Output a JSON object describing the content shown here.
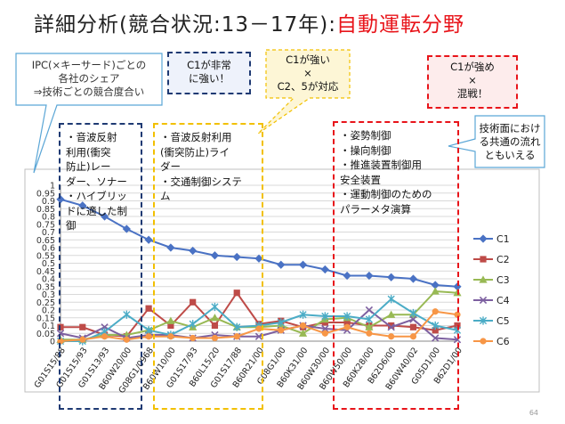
{
  "title": {
    "main": "詳細分析(競合状況:13－17年):",
    "highlight": "自動運転分野"
  },
  "callouts": {
    "ipc_note": [
      "IPC(×キーサード)ごとの",
      "各社のシェア",
      "⇒技術ごとの競合度合い"
    ],
    "c1_strong_very": [
      "C1が非常",
      "に強い！"
    ],
    "c1_strong_c25": [
      "C1が強い",
      "×",
      "C2、5が対応"
    ],
    "c1_strong_mixed": [
      "C1が強め",
      "×",
      "混戦！"
    ],
    "common_flow": [
      "技術面におけ",
      "る共通の流れ",
      "ともいえる"
    ]
  },
  "notes": {
    "box1": [
      "・音波反射",
      "利用(衝突",
      "防止)レー",
      "ダー、ソナー",
      "・ハイブリッ",
      "ドに適した制",
      "御"
    ],
    "box2": [
      "・音波反射利用",
      "(衝突防止)ライ",
      "ダー",
      "・交通制御システ",
      "ム"
    ],
    "box3": [
      "・姿勢制御",
      "・操向制御",
      "・推進装置制御用",
      "安全装置",
      "・運動制御のための",
      "パラーメタ演算"
    ]
  },
  "colors": {
    "title_highlight": "#e8141a",
    "box1": "#1f3a73",
    "box2": "#f2c000",
    "box3": "#e8141a"
  },
  "page_number": "64",
  "chart_data": {
    "type": "line",
    "ylim": [
      0,
      1
    ],
    "yticks": [
      "0",
      "0.05",
      "0.1",
      "0.15",
      "0.2",
      "0.25",
      "0.3",
      "0.35",
      "0.4",
      "0.45",
      "0.5",
      "0.55",
      "0.6",
      "0.65",
      "0.7",
      "0.75",
      "0.8",
      "0.85",
      "0.9",
      "0.95",
      "1"
    ],
    "categories": [
      "G01S15/88",
      "G01S15/93",
      "G01S13/93",
      "B60W20/00",
      "G08G1/0968",
      "B60W10/00",
      "G01S17/93",
      "B60L15/20",
      "G01S17/88",
      "B60R21/00",
      "G08G1/00",
      "B60K31/00",
      "B60W30/00",
      "B60W50/00",
      "B60K28/00",
      "B62D6/00",
      "B60W40/02",
      "G05D1/00",
      "B62D1/00"
    ],
    "legend": [
      "C1",
      "C2",
      "C3",
      "C4",
      "C5",
      "C6"
    ],
    "series": [
      {
        "name": "C1",
        "color": "#4a72c4",
        "marker": "diamond",
        "values": [
          0.91,
          0.87,
          0.8,
          0.72,
          0.65,
          0.6,
          0.58,
          0.55,
          0.54,
          0.53,
          0.49,
          0.49,
          0.46,
          0.42,
          0.42,
          0.41,
          0.4,
          0.36,
          0.35
        ]
      },
      {
        "name": "C2",
        "color": "#be4b48",
        "marker": "square",
        "values": [
          0.09,
          0.09,
          0.04,
          0.03,
          0.21,
          0.1,
          0.25,
          0.1,
          0.31,
          0.11,
          0.13,
          0.09,
          0.12,
          0.12,
          0.1,
          0.1,
          0.09,
          0.07,
          0.1
        ]
      },
      {
        "name": "C3",
        "color": "#98b954",
        "marker": "triangle",
        "values": [
          0.01,
          0.01,
          0.04,
          0.04,
          0.07,
          0.13,
          0.09,
          0.15,
          0.09,
          0.09,
          0.1,
          0.05,
          0.14,
          0.15,
          0.09,
          0.17,
          0.17,
          0.32,
          0.31
        ]
      },
      {
        "name": "C4",
        "color": "#7d60a0",
        "marker": "x",
        "values": [
          0.05,
          0.02,
          0.09,
          0.02,
          0.04,
          0.04,
          0.02,
          0.04,
          0.03,
          0.03,
          0.07,
          0.1,
          0.08,
          0.07,
          0.2,
          0.09,
          0.14,
          0.02,
          0.01
        ]
      },
      {
        "name": "C5",
        "color": "#4bacc6",
        "marker": "star",
        "values": [
          0.0,
          0.0,
          0.06,
          0.17,
          0.07,
          0.04,
          0.11,
          0.22,
          0.09,
          0.1,
          0.12,
          0.17,
          0.16,
          0.16,
          0.14,
          0.27,
          0.18,
          0.1,
          0.07
        ]
      },
      {
        "name": "C6",
        "color": "#f79646",
        "marker": "circle",
        "values": [
          0.0,
          0.01,
          0.03,
          0.01,
          0.03,
          0.03,
          0.02,
          0.02,
          0.03,
          0.08,
          0.07,
          0.1,
          0.05,
          0.09,
          0.05,
          0.03,
          0.03,
          0.19,
          0.17
        ]
      }
    ]
  }
}
